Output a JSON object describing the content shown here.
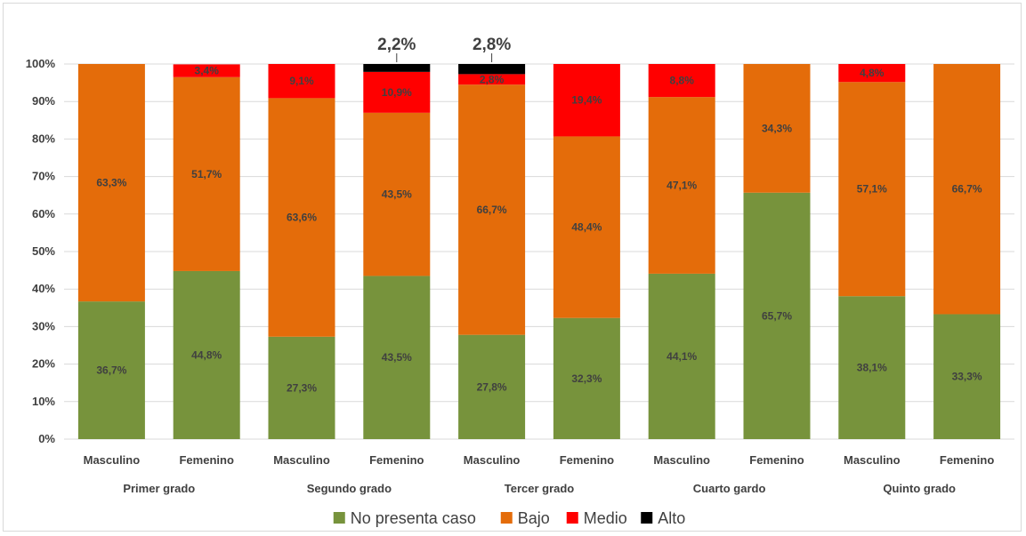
{
  "chart_data": {
    "type": "bar",
    "stacked": true,
    "y_axis": {
      "min": 0,
      "max": 100,
      "step": 10,
      "tick_labels": [
        "0%",
        "10%",
        "20%",
        "30%",
        "40%",
        "50%",
        "60%",
        "70%",
        "80%",
        "90%",
        "100%"
      ]
    },
    "grid": "horizontal",
    "legend_position": "bottom",
    "categories": [
      "Masculino",
      "Femenino",
      "Masculino",
      "Femenino",
      "Masculino",
      "Femenino",
      "Masculino",
      "Femenino",
      "Masculino",
      "Femenino"
    ],
    "groups": [
      {
        "label": "Primer grado",
        "span": [
          0,
          1
        ]
      },
      {
        "label": "Segundo grado",
        "span": [
          2,
          3
        ]
      },
      {
        "label": "Tercer  grado",
        "span": [
          4,
          5
        ]
      },
      {
        "label": "Cuarto  gardo",
        "span": [
          6,
          7
        ]
      },
      {
        "label": "Quinto grado",
        "span": [
          8,
          9
        ]
      }
    ],
    "series": [
      {
        "name": "No presenta caso",
        "color": "#77933c",
        "values": [
          36.7,
          44.8,
          27.3,
          43.5,
          27.8,
          32.3,
          44.1,
          65.7,
          38.1,
          33.3
        ],
        "labels": [
          "36,7%",
          "44,8%",
          "27,3%",
          "43,5%",
          "27,8%",
          "32,3%",
          "44,1%",
          "65,7%",
          "38,1%",
          "33,3%"
        ]
      },
      {
        "name": "Bajo",
        "color": "#e46c0a",
        "values": [
          63.3,
          51.7,
          63.6,
          43.5,
          66.7,
          48.4,
          47.1,
          34.3,
          57.1,
          66.7
        ],
        "labels": [
          "63,3%",
          "51,7%",
          "63,6%",
          "43,5%",
          "66,7%",
          "48,4%",
          "47,1%",
          "34,3%",
          "57,1%",
          "66,7%"
        ]
      },
      {
        "name": "Medio",
        "color": "#ff0000",
        "values": [
          0,
          3.4,
          9.1,
          10.9,
          2.8,
          19.4,
          8.8,
          0,
          4.8,
          0
        ],
        "labels": [
          "",
          "3,4%",
          "9,1%",
          "10,9%",
          "2,8%",
          "19,4%",
          "8,8%",
          "",
          "4,8%",
          ""
        ]
      },
      {
        "name": "Alto",
        "color": "#000000",
        "values": [
          0,
          0,
          0,
          2.2,
          2.8,
          0,
          0,
          0,
          0,
          0
        ],
        "labels": [
          "",
          "",
          "",
          "",
          "",
          "",
          "",
          "",
          "",
          ""
        ]
      }
    ],
    "callouts": [
      {
        "bar_index": 3,
        "text": "2,2%"
      },
      {
        "bar_index": 4,
        "text": "2,8%"
      }
    ]
  }
}
